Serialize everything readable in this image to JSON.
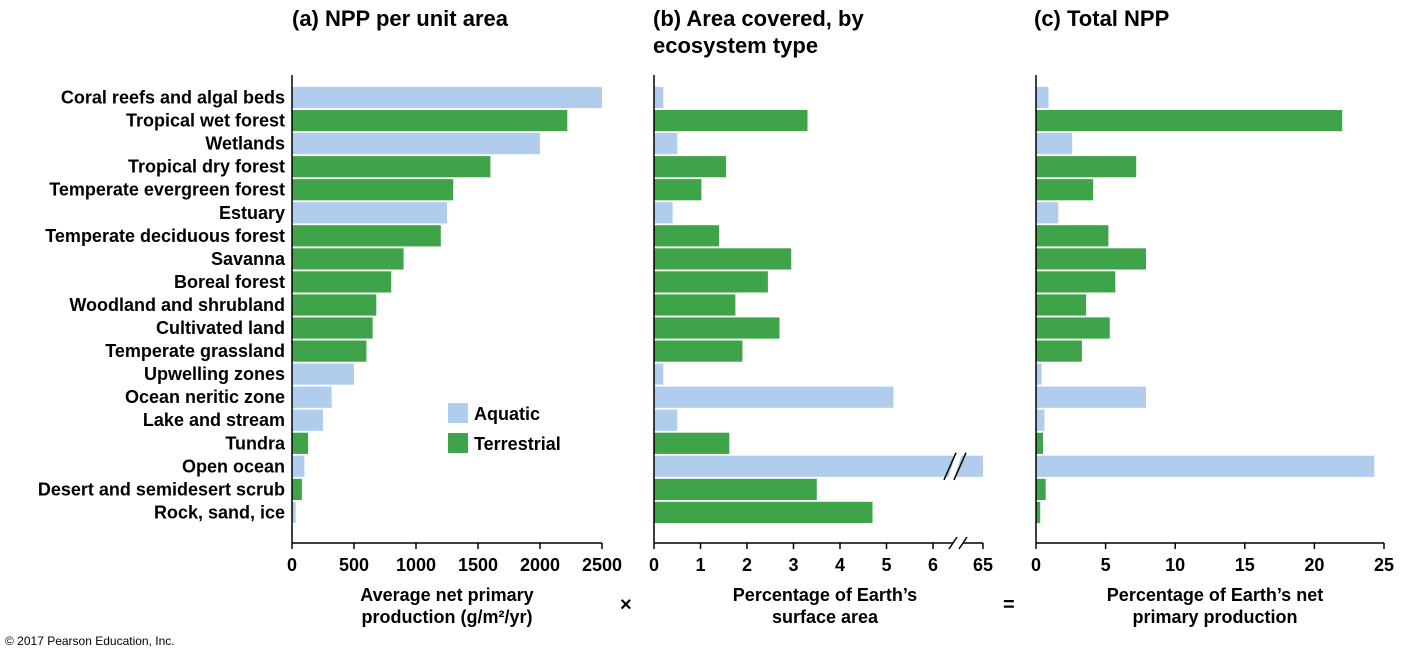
{
  "categories": [
    "Coral reefs and algal beds",
    "Tropical wet forest",
    "Wetlands",
    "Tropical dry forest",
    "Temperate evergreen forest",
    "Estuary",
    "Temperate deciduous forest",
    "Savanna",
    "Boreal forest",
    "Woodland and shrubland",
    "Cultivated land",
    "Temperate grassland",
    "Upwelling zones",
    "Ocean neritic zone",
    "Lake and stream",
    "Tundra",
    "Open ocean",
    "Desert and semidesert scrub",
    "Rock, sand, ice"
  ],
  "colors": {
    "aquatic": "#b0cdee",
    "terrestrial": "#3fa34a"
  },
  "legend": {
    "aquatic": "Aquatic",
    "terrestrial": "Terrestrial"
  },
  "operators": {
    "times": "×",
    "equals": "="
  },
  "copyright": "© 2017 Pearson Education, Inc.",
  "chart_data": [
    {
      "type": "bar",
      "title": "(a) NPP per unit area",
      "xlabel": [
        "Average net primary",
        "production (g/m²/yr)"
      ],
      "xlim": [
        0,
        2500
      ],
      "ticks": [
        "0",
        "500",
        "1000",
        "1500",
        "2000",
        "2500"
      ],
      "kind": [
        "aquatic",
        "terrestrial",
        "aquatic",
        "terrestrial",
        "terrestrial",
        "aquatic",
        "terrestrial",
        "terrestrial",
        "terrestrial",
        "terrestrial",
        "terrestrial",
        "terrestrial",
        "aquatic",
        "aquatic",
        "aquatic",
        "terrestrial",
        "aquatic",
        "terrestrial",
        "aquatic"
      ],
      "values": [
        2500,
        2220,
        2000,
        1600,
        1300,
        1250,
        1200,
        900,
        800,
        680,
        650,
        600,
        500,
        320,
        250,
        130,
        100,
        80,
        30
      ],
      "legend_position": "center-right"
    },
    {
      "type": "bar",
      "title": [
        "(b) Area covered, by",
        "ecosystem type"
      ],
      "xlabel": [
        "Percentage of Earth’s",
        "surface area"
      ],
      "xlim": [
        0,
        65
      ],
      "axis_break": [
        6.2,
        64.8
      ],
      "ticks": [
        "0",
        "1",
        "2",
        "3",
        "4",
        "5",
        "6",
        "65"
      ],
      "kind": [
        "aquatic",
        "terrestrial",
        "aquatic",
        "terrestrial",
        "terrestrial",
        "aquatic",
        "terrestrial",
        "terrestrial",
        "terrestrial",
        "terrestrial",
        "terrestrial",
        "terrestrial",
        "aquatic",
        "aquatic",
        "aquatic",
        "terrestrial",
        "aquatic",
        "terrestrial",
        "terrestrial"
      ],
      "values": [
        0.2,
        3.3,
        0.5,
        1.55,
        1.02,
        0.4,
        1.4,
        2.95,
        2.45,
        1.75,
        2.7,
        1.9,
        0.2,
        5.15,
        0.5,
        1.62,
        65,
        3.5,
        4.7
      ]
    },
    {
      "type": "bar",
      "title": "(c) Total NPP",
      "xlabel": [
        "Percentage of Earth’s net",
        "primary production"
      ],
      "xlim": [
        0,
        25
      ],
      "ticks": [
        "0",
        "5",
        "10",
        "15",
        "20",
        "25"
      ],
      "kind": [
        "aquatic",
        "terrestrial",
        "aquatic",
        "terrestrial",
        "terrestrial",
        "aquatic",
        "terrestrial",
        "terrestrial",
        "terrestrial",
        "terrestrial",
        "terrestrial",
        "terrestrial",
        "aquatic",
        "aquatic",
        "aquatic",
        "terrestrial",
        "aquatic",
        "terrestrial",
        "terrestrial"
      ],
      "values": [
        0.9,
        22.0,
        2.6,
        7.2,
        4.1,
        1.6,
        5.2,
        7.9,
        5.7,
        3.6,
        5.3,
        3.3,
        0.4,
        7.9,
        0.6,
        0.5,
        24.3,
        0.7,
        0.3
      ]
    }
  ]
}
